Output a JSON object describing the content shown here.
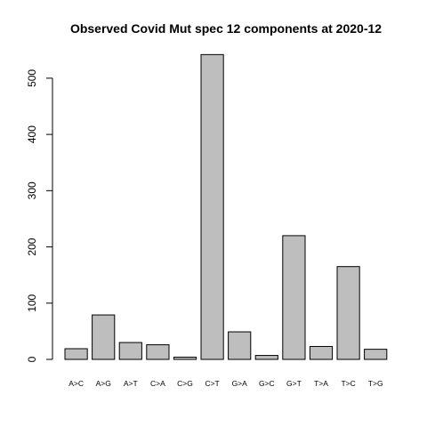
{
  "chart_data": {
    "type": "bar",
    "title": "Observed Covid Mut spec 12 components at 2020-12",
    "xlabel": "",
    "ylabel": "",
    "categories": [
      "A>C",
      "A>G",
      "A>T",
      "C>A",
      "C>G",
      "C>T",
      "G>A",
      "G>C",
      "G>T",
      "T>A",
      "T>C",
      "T>G"
    ],
    "values": [
      19,
      79,
      30,
      26,
      4,
      542,
      49,
      7,
      220,
      23,
      165,
      18
    ],
    "yticks": [
      0,
      100,
      200,
      300,
      400,
      500
    ],
    "ylim": [
      0,
      542
    ],
    "grid": false,
    "legend": "none",
    "bar_color": "#bebebe",
    "bar_border_color": "#000000"
  }
}
